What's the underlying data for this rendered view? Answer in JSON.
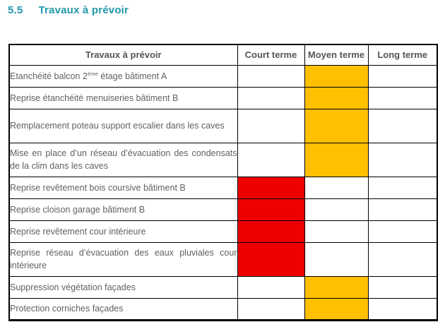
{
  "heading": {
    "number": "5.5",
    "title": "Travaux à prévoir"
  },
  "colors": {
    "accent_teal": "#2397AB",
    "court_terme_red": "#ED0000",
    "moyen_terme_yellow": "#FFC000",
    "table_border": "#000000",
    "body_text": "#616161",
    "header_text": "#555555"
  },
  "table": {
    "columns": [
      "Travaux à prévoir",
      "Court terme",
      "Moyen terme",
      "Long terme"
    ],
    "rows": [
      {
        "task": [
          "Etanchéité balcon 2",
          {
            "sup": "ème"
          },
          " étage bâtiment A"
        ],
        "court": false,
        "moyen": true,
        "long": false,
        "lines": 1
      },
      {
        "task": [
          "Reprise étanchéité menuiseries bâtiment B"
        ],
        "court": false,
        "moyen": true,
        "long": false,
        "lines": 1
      },
      {
        "task": [
          "Remplacement poteau support escalier dans les caves"
        ],
        "court": false,
        "moyen": true,
        "long": false,
        "lines": 2
      },
      {
        "task": [
          "Mise en place d’un réseau d’évacuation des condensats de la clim dans les caves"
        ],
        "court": false,
        "moyen": true,
        "long": false,
        "lines": 2
      },
      {
        "task": [
          "Reprise revêtement bois coursive bâtiment B"
        ],
        "court": true,
        "moyen": false,
        "long": false,
        "lines": 1
      },
      {
        "task": [
          "Reprise cloison garage bâtiment B"
        ],
        "court": true,
        "moyen": false,
        "long": false,
        "lines": 1
      },
      {
        "task": [
          "Reprise revêtement cour intérieure"
        ],
        "court": true,
        "moyen": false,
        "long": false,
        "lines": 1
      },
      {
        "task": [
          "Reprise réseau d’évacuation des eaux pluviales cour intérieure"
        ],
        "court": true,
        "moyen": false,
        "long": false,
        "lines": 2
      },
      {
        "task": [
          "Suppression végétation façades"
        ],
        "court": false,
        "moyen": true,
        "long": false,
        "lines": 1
      },
      {
        "task": [
          "Protection corniches façades"
        ],
        "court": false,
        "moyen": true,
        "long": false,
        "lines": 1
      }
    ]
  }
}
